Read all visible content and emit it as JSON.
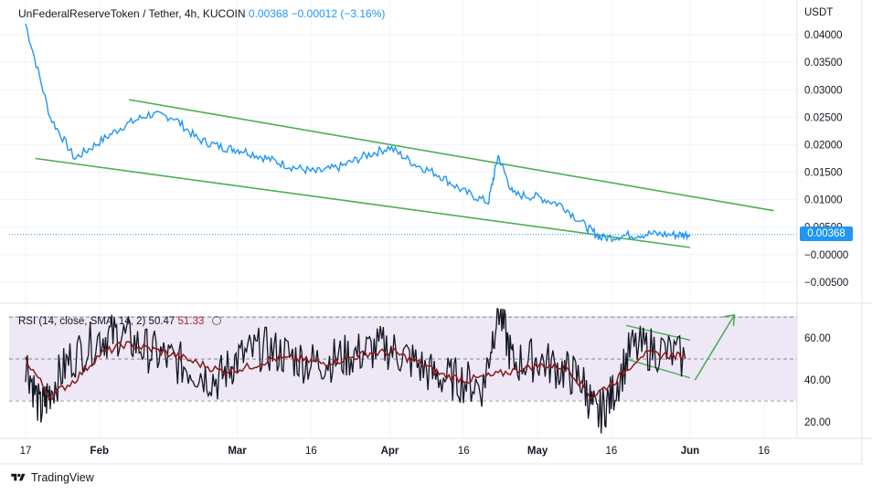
{
  "header": {
    "symbol": "UnFederalReserveToken / Tether, 4h, KUCOIN",
    "last": "0.00368",
    "change": "−0.00012 (−3.16%)"
  },
  "price_axis": {
    "unit": "USDT",
    "ticks": [
      "0.04000",
      "0.03500",
      "0.03000",
      "0.02500",
      "0.02000",
      "0.01500",
      "0.01000",
      "0.00500",
      "−0.00000",
      "−0.00500"
    ],
    "last_price_tag": "0.00368"
  },
  "rsi": {
    "label": "RSI (14, close, SMA, 14, 2)",
    "rsi_value": "50.47",
    "sma_value": "51.33",
    "ticks": [
      "60.00",
      "40.00",
      "20.00"
    ]
  },
  "time_axis": {
    "labels": [
      "17",
      "Feb",
      "Mar",
      "16",
      "Apr",
      "16",
      "May",
      "16",
      "Jun",
      "16"
    ]
  },
  "branding": {
    "name": "TradingView"
  },
  "colors": {
    "price": "#2196f3",
    "trend": "#4caf50",
    "rsi": "#131722",
    "rsi_sma": "#8b1a1a",
    "band": "#ede7f6"
  },
  "chart_data": [
    {
      "type": "line",
      "series": [
        {
          "x": [
            "Jan 17",
            "Jan 22",
            "Jan 27",
            "Feb 1",
            "Feb 6",
            "Feb 11",
            "Feb 16",
            "Feb 21",
            "Feb 26",
            "Mar 2",
            "Mar 7",
            "Mar 12",
            "Mar 17",
            "Mar 22",
            "Mar 27",
            "Apr 1",
            "Apr 6",
            "Apr 11",
            "Apr 16",
            "Apr 21",
            "Apr 23",
            "Apr 26",
            "May 1",
            "May 6",
            "May 11",
            "May 14",
            "May 19",
            "May 24",
            "May 29",
            "Jun 1"
          ],
          "values": [
            0.042,
            0.025,
            0.0175,
            0.0205,
            0.0235,
            0.0255,
            0.025,
            0.021,
            0.0195,
            0.019,
            0.0175,
            0.016,
            0.015,
            0.016,
            0.018,
            0.0195,
            0.0165,
            0.0145,
            0.0115,
            0.0095,
            0.018,
            0.011,
            0.0105,
            0.009,
            0.005,
            0.003,
            0.0035,
            0.0038,
            0.0036,
            0.00368
          ]
        }
      ],
      "trendlines": [
        {
          "from": [
            "Feb 7",
            0.0282
          ],
          "to": [
            "Jun 18",
            0.008
          ]
        },
        {
          "from": [
            "Jan 19",
            0.0175
          ],
          "to": [
            "Jun 1",
            0.0013
          ]
        }
      ],
      "ylim": [
        -0.0085,
        0.045
      ]
    },
    {
      "type": "line",
      "series": [
        {
          "x": [
            "Jan 17",
            "Jan 20",
            "Jan 22",
            "Jan 26",
            "Feb 1",
            "Feb 5",
            "Feb 10",
            "Feb 15",
            "Feb 20",
            "Feb 25",
            "Mar 1",
            "Mar 6",
            "Mar 11",
            "Mar 16",
            "Mar 21",
            "Mar 26",
            "Mar 31",
            "Apr 5",
            "Apr 10",
            "Apr 15",
            "Apr 20",
            "Apr 23",
            "Apr 26",
            "May 1",
            "May 6",
            "May 10",
            "May 13",
            "May 16",
            "May 20",
            "May 25",
            "May 31"
          ],
          "values": [
            50,
            25,
            35,
            50,
            60,
            62,
            55,
            50,
            45,
            40,
            50,
            55,
            52,
            48,
            50,
            53,
            56,
            50,
            42,
            40,
            37,
            75,
            48,
            50,
            45,
            40,
            22,
            32,
            55,
            55,
            50
          ]
        },
        {
          "x": [
            "Jan 17",
            "Jan 22",
            "Jan 27",
            "Feb 1",
            "Feb 6",
            "Feb 11",
            "Feb 16",
            "Feb 21",
            "Feb 26",
            "Mar 3",
            "Mar 8",
            "Mar 13",
            "Mar 18",
            "Mar 23",
            "Mar 28",
            "Apr 2",
            "Apr 7",
            "Apr 12",
            "Apr 17",
            "Apr 22",
            "Apr 27",
            "May 2",
            "May 7",
            "May 12",
            "May 17",
            "May 22",
            "May 27",
            "May 31"
          ],
          "values": [
            50,
            32,
            40,
            52,
            57,
            55,
            52,
            48,
            44,
            46,
            50,
            50,
            48,
            50,
            53,
            53,
            48,
            42,
            40,
            42,
            45,
            47,
            46,
            32,
            40,
            52,
            52,
            51
          ]
        }
      ],
      "ylim": [
        13,
        74
      ]
    }
  ]
}
